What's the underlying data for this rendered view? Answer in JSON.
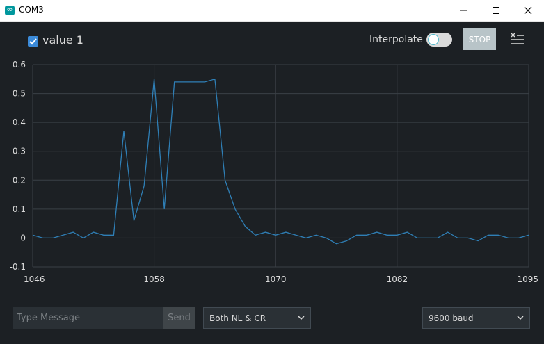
{
  "window": {
    "title": "COM3",
    "minimize_icon": "minimize-icon",
    "maximize_icon": "maximize-icon",
    "close_icon": "close-icon"
  },
  "toolbar": {
    "series_checked": true,
    "series_label": "value 1",
    "interpolate_label": "Interpolate",
    "interpolate_on": false,
    "stop_label": "STOP",
    "clear_icon": "clear-list-icon"
  },
  "colors": {
    "background": "#1c2024",
    "series": "#2f7fb6",
    "grid": "#3a4046",
    "accent": "#3b8ad8"
  },
  "chart_data": {
    "type": "line",
    "x_ticks": [
      "1046",
      "1058",
      "1070",
      "1082",
      "1095"
    ],
    "y_ticks": [
      "0.6",
      "0.5",
      "0.4",
      "0.3",
      "0.2",
      "0.1",
      "0",
      "-0.1"
    ],
    "xlim": [
      1046,
      1095
    ],
    "ylim": [
      -0.1,
      0.6
    ],
    "grid": true,
    "series": [
      {
        "x": [
          1046,
          1047,
          1048,
          1049,
          1050,
          1051,
          1052,
          1053,
          1054,
          1055,
          1056,
          1057,
          1058,
          1059,
          1060,
          1061,
          1062,
          1063,
          1064,
          1065,
          1066,
          1067,
          1068,
          1069,
          1070,
          1071,
          1072,
          1073,
          1074,
          1075,
          1076,
          1077,
          1078,
          1079,
          1080,
          1081,
          1082,
          1083,
          1084,
          1085,
          1086,
          1087,
          1088,
          1089,
          1090,
          1091,
          1092,
          1093,
          1094,
          1095
        ],
        "values": [
          0.01,
          0,
          0,
          0.01,
          0.02,
          0,
          0.02,
          0.01,
          0.01,
          0.37,
          0.06,
          0.18,
          0.55,
          0.1,
          0.54,
          0.54,
          0.54,
          0.54,
          0.55,
          0.2,
          0.1,
          0.04,
          0.01,
          0.02,
          0.01,
          0.02,
          0.01,
          0,
          0.01,
          0,
          -0.02,
          -0.01,
          0.01,
          0.01,
          0.02,
          0.01,
          0.01,
          0.02,
          0,
          0,
          0,
          0.02,
          0,
          0,
          -0.01,
          0.01,
          0.01,
          0,
          0,
          0.01
        ]
      }
    ]
  },
  "footer": {
    "message_placeholder": "Type Message",
    "send_label": "Send",
    "line_ending": "Both NL & CR",
    "baud_rate": "9600 baud"
  }
}
